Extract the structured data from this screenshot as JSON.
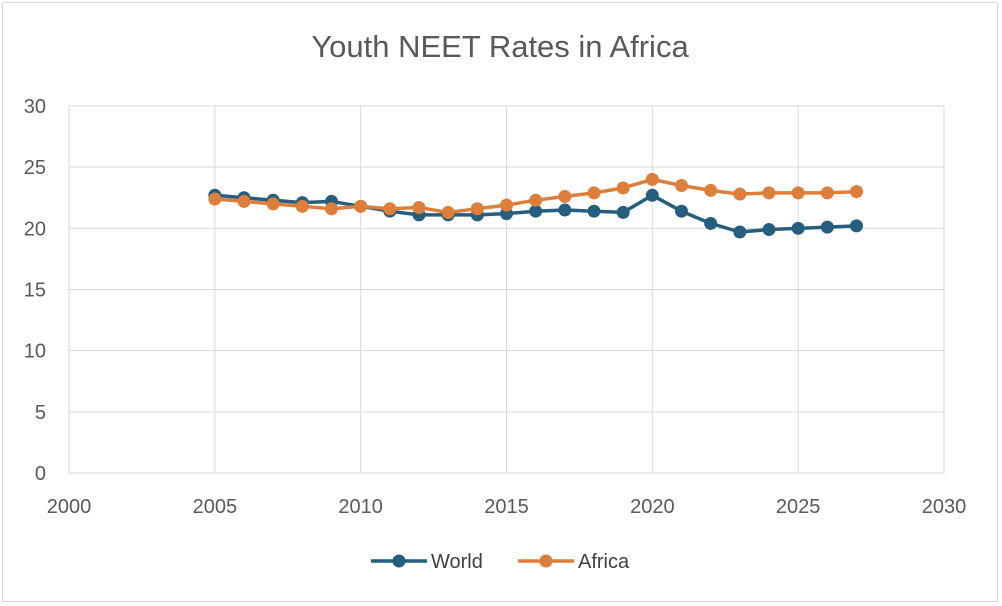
{
  "chart_data": {
    "type": "line",
    "title": "Youth NEET Rates in Africa",
    "xlabel": "",
    "ylabel": "",
    "xlim": [
      2000,
      2030
    ],
    "ylim": [
      0,
      30
    ],
    "xticks": [
      2000,
      2005,
      2010,
      2015,
      2020,
      2025,
      2030
    ],
    "yticks": [
      0,
      5,
      10,
      15,
      20,
      25,
      30
    ],
    "grid": true,
    "legend_position": "bottom",
    "x": [
      2005,
      2006,
      2007,
      2008,
      2009,
      2010,
      2011,
      2012,
      2013,
      2014,
      2015,
      2016,
      2017,
      2018,
      2019,
      2020,
      2021,
      2022,
      2023,
      2024,
      2025,
      2026,
      2027
    ],
    "series": [
      {
        "name": "World",
        "color": "#255e7e",
        "values": [
          22.7,
          22.5,
          22.3,
          22.1,
          22.2,
          21.8,
          21.4,
          21.1,
          21.1,
          21.1,
          21.2,
          21.4,
          21.5,
          21.4,
          21.3,
          22.7,
          21.4,
          20.4,
          19.7,
          19.9,
          20.0,
          20.1,
          20.2
        ]
      },
      {
        "name": "Africa",
        "color": "#dd7e3b",
        "values": [
          22.4,
          22.2,
          22.0,
          21.8,
          21.6,
          21.8,
          21.6,
          21.7,
          21.3,
          21.6,
          21.9,
          22.3,
          22.6,
          22.9,
          23.3,
          24.0,
          23.5,
          23.1,
          22.8,
          22.9,
          22.9,
          22.9,
          23.0
        ]
      }
    ]
  }
}
